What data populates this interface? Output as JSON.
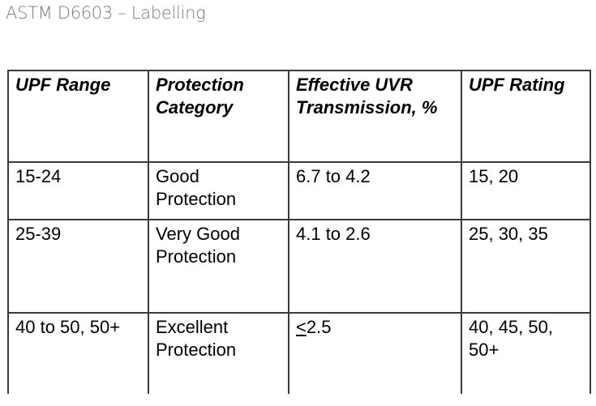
{
  "page": {
    "title": "ASTM D6603 – Labelling"
  },
  "table": {
    "headers": [
      "UPF Range",
      "Protection Category",
      "Effective UVR Transmission, %",
      "UPF Rating"
    ],
    "rows": [
      [
        "15-24",
        "Good Protection",
        "6.7 to 4.2",
        "15, 20"
      ],
      [
        "25-39",
        "Very Good Protection",
        "4.1 to 2.6",
        "25, 30, 35"
      ],
      [
        "40 to 50, 50+",
        "Excellent Protection",
        "2.5",
        "40, 45, 50, 50+"
      ]
    ],
    "le_symbol": "<"
  }
}
